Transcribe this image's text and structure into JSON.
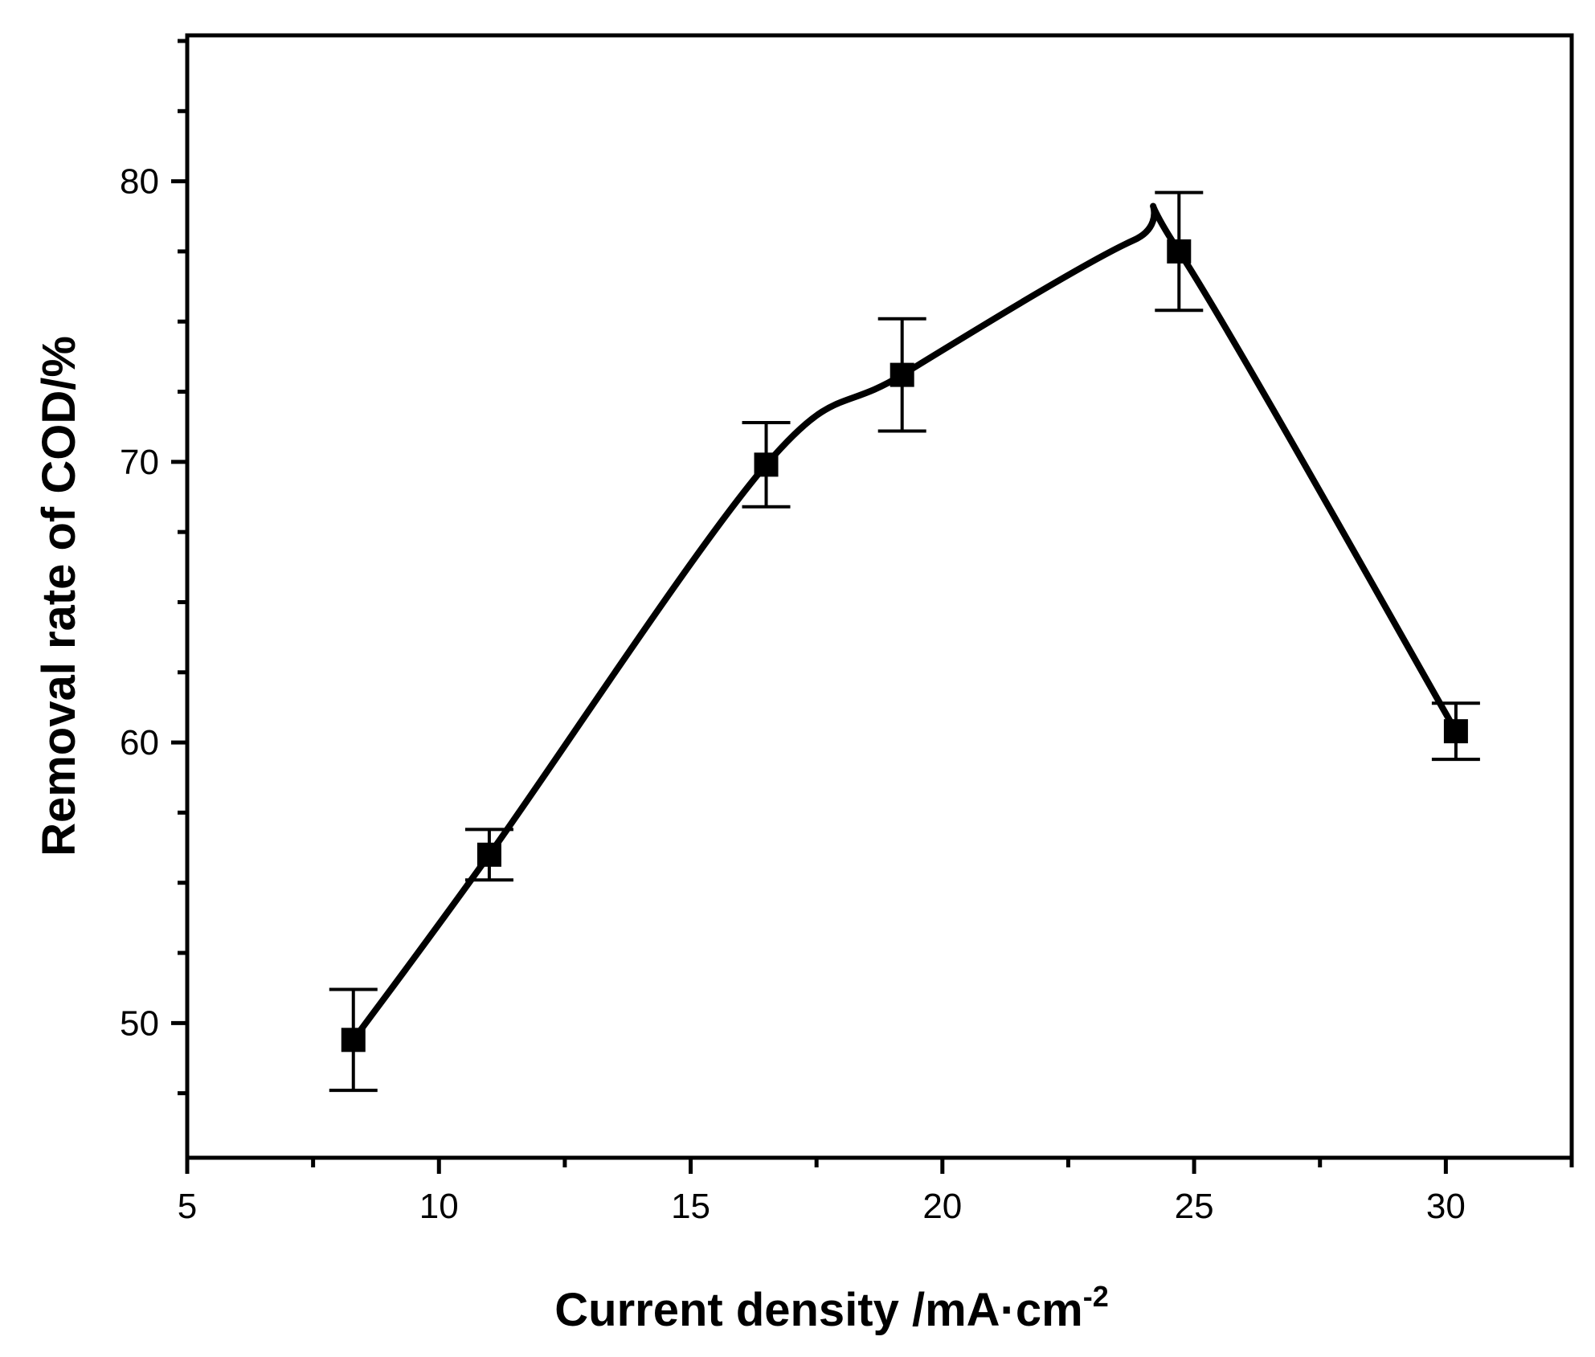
{
  "chart_data": {
    "type": "line",
    "title": "",
    "xlabel": "Current density /mA·cm",
    "xlabel_superscript": "-2",
    "ylabel": "Removal rate of COD/%",
    "xlim": [
      5,
      32.5
    ],
    "ylim": [
      45.2,
      85.2
    ],
    "xticks": [
      5,
      10,
      15,
      20,
      25,
      30
    ],
    "xtick_labels": [
      "5",
      "10",
      "15",
      "20",
      "25",
      "30"
    ],
    "yticks": [
      50,
      60,
      70,
      80
    ],
    "ytick_labels": [
      "50",
      "60",
      "70",
      "80"
    ],
    "grid": false,
    "legend": "none",
    "marker": "square",
    "line_style": "smooth spline",
    "series": [
      {
        "x": [
          8.3,
          11.0,
          16.5,
          19.2,
          24.7,
          30.2
        ],
        "y": [
          49.4,
          56.0,
          69.9,
          73.1,
          77.5,
          60.4
        ],
        "error": [
          1.8,
          0.9,
          1.5,
          2.0,
          2.1,
          1.0
        ],
        "color": "#000000"
      }
    ],
    "curve_peak": {
      "x": 23.8,
      "y": 77.9
    }
  }
}
